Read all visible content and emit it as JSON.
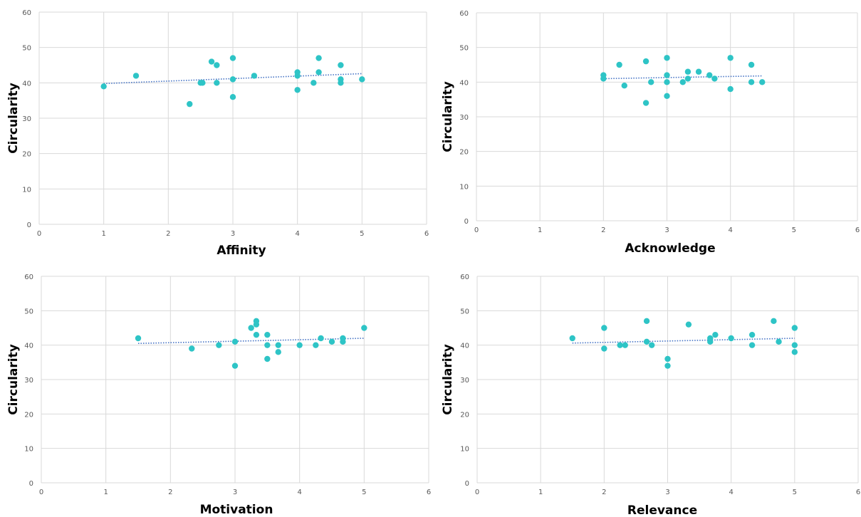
{
  "colors": {
    "point": "#2EC4C6",
    "trend": "#4472C4",
    "grid": "#D9D9D9"
  },
  "chart_data": [
    {
      "type": "scatter",
      "xlabel": "Affinity",
      "ylabel": "Circularity",
      "xlim": [
        0,
        6
      ],
      "ylim": [
        0,
        60
      ],
      "x_ticks": [
        "0",
        "1",
        "2",
        "3",
        "4",
        "5",
        "6"
      ],
      "y_ticks": [
        "0",
        "10",
        "20",
        "30",
        "40",
        "50",
        "60"
      ],
      "grid": true,
      "trendline": {
        "style": "dotted-linear",
        "x": [
          1,
          5
        ],
        "y": [
          39.8,
          42.6
        ]
      },
      "points": [
        {
          "x": 1,
          "y": 39
        },
        {
          "x": 1.5,
          "y": 42
        },
        {
          "x": 2.33,
          "y": 34
        },
        {
          "x": 2.5,
          "y": 40
        },
        {
          "x": 2.53,
          "y": 40
        },
        {
          "x": 2.67,
          "y": 46
        },
        {
          "x": 2.75,
          "y": 45
        },
        {
          "x": 2.75,
          "y": 40
        },
        {
          "x": 3,
          "y": 47
        },
        {
          "x": 3,
          "y": 41
        },
        {
          "x": 3,
          "y": 36
        },
        {
          "x": 3.33,
          "y": 42
        },
        {
          "x": 4,
          "y": 43
        },
        {
          "x": 4,
          "y": 42
        },
        {
          "x": 4,
          "y": 38
        },
        {
          "x": 4.25,
          "y": 40
        },
        {
          "x": 4.33,
          "y": 47
        },
        {
          "x": 4.33,
          "y": 43
        },
        {
          "x": 4.67,
          "y": 45
        },
        {
          "x": 4.67,
          "y": 41
        },
        {
          "x": 4.67,
          "y": 40
        },
        {
          "x": 5,
          "y": 41
        }
      ]
    },
    {
      "type": "scatter",
      "xlabel": "Acknowledge",
      "ylabel": "Circularity",
      "xlim": [
        0,
        6
      ],
      "ylim": [
        0,
        60
      ],
      "x_ticks": [
        "0",
        "1",
        "2",
        "3",
        "4",
        "5",
        "6"
      ],
      "y_ticks": [
        "0",
        "10",
        "20",
        "30",
        "40",
        "50",
        "60"
      ],
      "grid": true,
      "trendline": {
        "style": "dotted-linear",
        "x": [
          2,
          4.5
        ],
        "y": [
          41.0,
          41.8
        ]
      },
      "points": [
        {
          "x": 2,
          "y": 42
        },
        {
          "x": 2,
          "y": 41
        },
        {
          "x": 2.25,
          "y": 45
        },
        {
          "x": 2.33,
          "y": 39
        },
        {
          "x": 2.67,
          "y": 46
        },
        {
          "x": 2.67,
          "y": 34
        },
        {
          "x": 2.75,
          "y": 40
        },
        {
          "x": 3,
          "y": 47
        },
        {
          "x": 3,
          "y": 42
        },
        {
          "x": 3,
          "y": 40
        },
        {
          "x": 3,
          "y": 36
        },
        {
          "x": 3.25,
          "y": 40
        },
        {
          "x": 3.33,
          "y": 43
        },
        {
          "x": 3.33,
          "y": 41
        },
        {
          "x": 3.5,
          "y": 43
        },
        {
          "x": 3.67,
          "y": 42
        },
        {
          "x": 3.75,
          "y": 41
        },
        {
          "x": 4,
          "y": 47
        },
        {
          "x": 4,
          "y": 38
        },
        {
          "x": 4.33,
          "y": 45
        },
        {
          "x": 4.33,
          "y": 40
        },
        {
          "x": 4.5,
          "y": 40
        }
      ]
    },
    {
      "type": "scatter",
      "xlabel": "Motivation",
      "ylabel": "Circularity",
      "xlim": [
        0,
        6
      ],
      "ylim": [
        0,
        60
      ],
      "x_ticks": [
        "0",
        "1",
        "2",
        "3",
        "4",
        "5",
        "6"
      ],
      "y_ticks": [
        "0",
        "10",
        "20",
        "30",
        "40",
        "50",
        "60"
      ],
      "grid": true,
      "trendline": {
        "style": "dotted-linear",
        "x": [
          1.5,
          5
        ],
        "y": [
          40.5,
          42.0
        ]
      },
      "points": [
        {
          "x": 1.5,
          "y": 42
        },
        {
          "x": 2.33,
          "y": 39
        },
        {
          "x": 2.75,
          "y": 40
        },
        {
          "x": 3,
          "y": 41
        },
        {
          "x": 3,
          "y": 34
        },
        {
          "x": 3.25,
          "y": 45
        },
        {
          "x": 3.33,
          "y": 47
        },
        {
          "x": 3.33,
          "y": 46
        },
        {
          "x": 3.33,
          "y": 43
        },
        {
          "x": 3.5,
          "y": 43
        },
        {
          "x": 3.5,
          "y": 40
        },
        {
          "x": 3.5,
          "y": 36
        },
        {
          "x": 3.67,
          "y": 40
        },
        {
          "x": 3.67,
          "y": 38
        },
        {
          "x": 4,
          "y": 40
        },
        {
          "x": 4.25,
          "y": 40
        },
        {
          "x": 4.33,
          "y": 42
        },
        {
          "x": 4.5,
          "y": 41
        },
        {
          "x": 4.67,
          "y": 42
        },
        {
          "x": 4.67,
          "y": 41
        },
        {
          "x": 5,
          "y": 45
        }
      ]
    },
    {
      "type": "scatter",
      "xlabel": "Relevance",
      "ylabel": "Circularity",
      "xlim": [
        0,
        6
      ],
      "ylim": [
        0,
        60
      ],
      "x_ticks": [
        "0",
        "1",
        "2",
        "3",
        "4",
        "5",
        "6"
      ],
      "y_ticks": [
        "0",
        "10",
        "20",
        "30",
        "40",
        "50",
        "60"
      ],
      "grid": true,
      "trendline": {
        "style": "dotted-linear",
        "x": [
          1.5,
          5
        ],
        "y": [
          40.6,
          42.0
        ]
      },
      "points": [
        {
          "x": 1.5,
          "y": 42
        },
        {
          "x": 2,
          "y": 45
        },
        {
          "x": 2,
          "y": 39
        },
        {
          "x": 2.25,
          "y": 40
        },
        {
          "x": 2.33,
          "y": 40
        },
        {
          "x": 2.67,
          "y": 47
        },
        {
          "x": 2.67,
          "y": 41
        },
        {
          "x": 2.75,
          "y": 40
        },
        {
          "x": 3,
          "y": 36
        },
        {
          "x": 3,
          "y": 34
        },
        {
          "x": 3.33,
          "y": 46
        },
        {
          "x": 3.67,
          "y": 42
        },
        {
          "x": 3.67,
          "y": 41
        },
        {
          "x": 3.75,
          "y": 43
        },
        {
          "x": 4,
          "y": 42
        },
        {
          "x": 4.33,
          "y": 43
        },
        {
          "x": 4.33,
          "y": 40
        },
        {
          "x": 4.67,
          "y": 47
        },
        {
          "x": 4.75,
          "y": 41
        },
        {
          "x": 5,
          "y": 45
        },
        {
          "x": 5,
          "y": 40
        },
        {
          "x": 5,
          "y": 38
        }
      ]
    }
  ]
}
